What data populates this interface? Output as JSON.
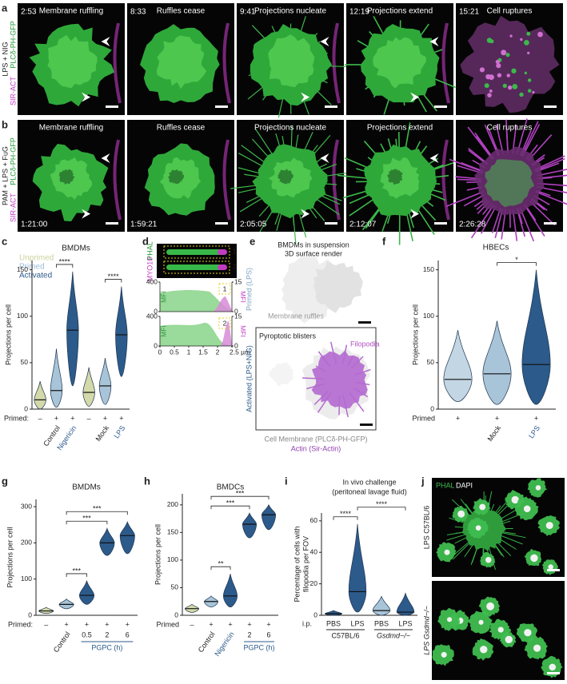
{
  "panel_a": {
    "label": "a",
    "condition": "LPS + NIG",
    "stain_1": "SIR-ACT",
    "stain_2": "PLCδ-PH-GFP",
    "frames": [
      {
        "title": "Membrane ruffling",
        "time": "2:53"
      },
      {
        "title": "Ruffles cease",
        "time": "8:33"
      },
      {
        "title": "Projections nucleate",
        "time": "9:41"
      },
      {
        "title": "Projections extend",
        "time": "12:19"
      },
      {
        "title": "Cell ruptures",
        "time": "15:21"
      }
    ]
  },
  "panel_b": {
    "label": "b",
    "condition": "PAM + LPS + FuG",
    "stain_1": "SIR-ACT",
    "stain_2": "PLCδ-PH-GFP",
    "frames": [
      {
        "title": "Membrane ruffling",
        "time": "1:21:00"
      },
      {
        "title": "Ruffles cease",
        "time": "1:59:21"
      },
      {
        "title": "Projections nucleate",
        "time": "2:05:05"
      },
      {
        "title": "Projections extend",
        "time": "2:12:07"
      },
      {
        "title": "Cell ruptures",
        "time": "2:26:28"
      }
    ]
  },
  "panel_c": {
    "label": "c",
    "title": "BMDMs",
    "legend": [
      {
        "name": "Unprimed",
        "color": "#ccd39c"
      },
      {
        "name": "Primed",
        "color": "#9dbdd6"
      },
      {
        "name": "Activated",
        "color": "#2c5a8a"
      }
    ],
    "plot": {
      "ylabel": "Projections per cell",
      "ylim": [
        0,
        160
      ],
      "yticks": [
        0,
        50,
        100,
        150
      ],
      "primed_label": "Primed:",
      "primed": [
        "–",
        "+",
        "+",
        "–",
        "+",
        "+"
      ],
      "categories": [
        null,
        "Control",
        "Nigericin",
        null,
        "Mock",
        "LPS"
      ],
      "category_colors": [
        null,
        "#222222",
        "#2c5a8a",
        null,
        "#222222",
        "#2c5a8a"
      ],
      "violins": [
        {
          "color": "#d3d9a8",
          "min": 0,
          "median": 10,
          "max": 30
        },
        {
          "color": "#a8c4d8",
          "min": 2,
          "median": 20,
          "max": 65
        },
        {
          "color": "#2c5a8a",
          "min": 25,
          "median": 85,
          "max": 148
        },
        {
          "color": "#d3d9a8",
          "min": 3,
          "median": 18,
          "max": 45
        },
        {
          "color": "#a8c4d8",
          "min": 5,
          "median": 25,
          "max": 55
        },
        {
          "color": "#2c5a8a",
          "min": 35,
          "median": 80,
          "max": 132
        }
      ],
      "brackets": [
        {
          "from": 1,
          "to": 2,
          "label": "****"
        },
        {
          "from": 4,
          "to": 5,
          "label": "****"
        }
      ]
    }
  },
  "panel_d": {
    "label": "d",
    "stain_1": "MYO10",
    "stain_2": "PHAL",
    "xlim": [
      0,
      2.5
    ],
    "xticks": [
      0,
      0.5,
      1,
      1.5,
      2,
      {
        "value": 2.5,
        "label": "2.5 µm"
      }
    ],
    "profiles": [
      {
        "roi": "1",
        "left_axis": "MFI",
        "right_axis": "MFI",
        "ylim": [
          0,
          400
        ],
        "yticks": [
          0,
          400
        ],
        "y2lim": [
          0,
          15
        ],
        "y2ticks": [
          0,
          15
        ]
      },
      {
        "roi": "2",
        "left_axis": "MFI",
        "right_axis": "MFI",
        "ylim": [
          0,
          400
        ],
        "yticks": [
          0,
          400
        ],
        "y2lim": [
          0,
          15
        ],
        "y2ticks": [
          0,
          15
        ]
      }
    ]
  },
  "panel_e": {
    "label": "e",
    "title": "BMDMs in suspension",
    "subtitle": "3D surface render",
    "top": {
      "condition": "Primed (LPS)",
      "annotation": "Membrane ruffles"
    },
    "bottom": {
      "condition": "Activated (LPS+NIG)",
      "annotations": [
        "Pyroptotic blisters",
        "Filopodia"
      ]
    },
    "legend": [
      "Cell Membrane (PLCδ-PH-GFP)",
      "Actin (Sir-Actin)"
    ]
  },
  "panel_f": {
    "label": "f",
    "title": "HBECs",
    "plot": {
      "ylabel": "Projections per cell",
      "ylim": [
        0,
        160
      ],
      "yticks": [
        0,
        50,
        100,
        150
      ],
      "primed_label": "Primed",
      "primed": [
        "+",
        "+",
        "+"
      ],
      "categories": [
        null,
        "Mock",
        "LPS"
      ],
      "category_colors": [
        null,
        "#222222",
        "#2c5a8a"
      ],
      "violins": [
        {
          "color": "#c3d6e4",
          "min": 8,
          "median": 32,
          "max": 85
        },
        {
          "color": "#a8c4d8",
          "min": 5,
          "median": 38,
          "max": 95
        },
        {
          "color": "#2c5a8a",
          "min": 5,
          "median": 48,
          "max": 150
        }
      ],
      "brackets": [
        {
          "from": 1,
          "to": 2,
          "label": "*"
        }
      ]
    }
  },
  "panel_g": {
    "label": "g",
    "title": "BMDMs",
    "plot": {
      "ylabel": "Projections per cell",
      "ylim": [
        0,
        320
      ],
      "yticks": [
        0,
        100,
        200,
        300
      ],
      "primed_label": "Primed:",
      "primed": [
        "–",
        "+",
        "+",
        "+",
        "+"
      ],
      "categories": [
        null,
        "Control",
        null,
        null,
        null
      ],
      "category_colors": [
        null,
        "#222222",
        null,
        null,
        null
      ],
      "subcategories": [
        null,
        null,
        "0.5",
        "2",
        "6"
      ],
      "group_label": "PGPC (h)",
      "violins": [
        {
          "color": "#d3d9a8",
          "min": 5,
          "median": 12,
          "max": 22
        },
        {
          "color": "#a8c4d8",
          "min": 18,
          "median": 30,
          "max": 45
        },
        {
          "color": "#2c5a8a",
          "min": 30,
          "median": 55,
          "max": 95
        },
        {
          "color": "#2c5a8a",
          "min": 165,
          "median": 200,
          "max": 240
        },
        {
          "color": "#2c5a8a",
          "min": 170,
          "median": 220,
          "max": 258
        }
      ],
      "brackets": [
        {
          "from": 1,
          "to": 2,
          "label": "***"
        },
        {
          "from": 1,
          "to": 3,
          "label": "***"
        },
        {
          "from": 1,
          "to": 4,
          "label": "***"
        }
      ]
    }
  },
  "panel_h": {
    "label": "h",
    "title": "BMDCs",
    "plot": {
      "ylabel": "Projections per cell",
      "ylim": [
        0,
        220
      ],
      "yticks": [
        0,
        50,
        100,
        150,
        200
      ],
      "primed_label": "Primed",
      "primed": [
        "–",
        "+",
        "+",
        "+",
        "+"
      ],
      "categories": [
        null,
        "Control",
        "Nigericin",
        null,
        null
      ],
      "category_colors": [
        null,
        "#222222",
        "#2c5a8a",
        null,
        null
      ],
      "subcategories": [
        null,
        null,
        null,
        "2",
        "6"
      ],
      "group_label": "PGPC (h)",
      "violins": [
        {
          "color": "#d3d9a8",
          "min": 5,
          "median": 12,
          "max": 20
        },
        {
          "color": "#a8c4d8",
          "min": 15,
          "median": 25,
          "max": 35
        },
        {
          "color": "#2c5a8a",
          "min": 15,
          "median": 35,
          "max": 75
        },
        {
          "color": "#2c5a8a",
          "min": 140,
          "median": 165,
          "max": 185
        },
        {
          "color": "#2c5a8a",
          "min": 155,
          "median": 182,
          "max": 200
        }
      ],
      "brackets": [
        {
          "from": 1,
          "to": 2,
          "label": "**"
        },
        {
          "from": 1,
          "to": 3,
          "label": "***"
        },
        {
          "from": 1,
          "to": 4,
          "label": "***"
        }
      ]
    }
  },
  "panel_i": {
    "label": "i",
    "title": "In vivo challenge",
    "subtitle": "(peritoneal lavage fluid)",
    "route": "i.p.",
    "groups": [
      "C57BL/6",
      "Gsdmd−/−"
    ],
    "plot": {
      "ylabel": [
        "Percentage of cells with",
        "filopodia per FOV"
      ],
      "ylim": [
        0,
        65
      ],
      "yticks": [
        0,
        20,
        40,
        60
      ],
      "subcategories": [
        "PBS",
        "LPS",
        "PBS",
        "LPS"
      ],
      "violins": [
        {
          "color": "#2c5a8a",
          "min": 0,
          "median": 1,
          "max": 3
        },
        {
          "color": "#2c5a8a",
          "min": 2,
          "median": 15,
          "max": 58
        },
        {
          "color": "#a8c4d8",
          "min": 0,
          "median": 3,
          "max": 12
        },
        {
          "color": "#2c5a8a",
          "min": 0,
          "median": 2,
          "max": 14
        }
      ],
      "brackets": [
        {
          "from": 0,
          "to": 1,
          "label": "****"
        },
        {
          "from": 1,
          "to": 3,
          "label": "****"
        }
      ]
    }
  },
  "panel_j": {
    "label": "j",
    "stain_1": "PHAL",
    "stain_2": "DAPI",
    "conditions": [
      "LPS C57BL/6",
      "LPS Gsdmd−/−"
    ]
  }
}
